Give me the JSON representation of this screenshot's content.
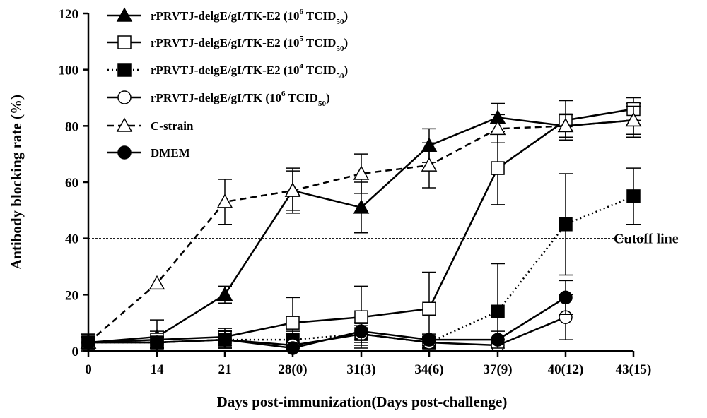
{
  "chart_data": {
    "type": "line",
    "xlabel": "Days post-immunization(Days post-challenge)",
    "ylabel": "Antibody blocking rate (%)",
    "ylim": [
      0,
      120
    ],
    "yticks": [
      "0",
      "20",
      "40",
      "60",
      "80",
      "100",
      "120"
    ],
    "categories": [
      "0",
      "14",
      "21",
      "28(0)",
      "31(3)",
      "34(6)",
      "37(9)",
      "40(12)",
      "43(15)"
    ],
    "cutoff": {
      "value": 40,
      "label": "Cutoff line"
    },
    "legend_position": "top-left",
    "series": [
      {
        "name": "rPRVTJ-delgE/gI/TK-E2 (10^6 TCID50)",
        "label_parts": [
          "rPRVTJ-delgE/gI/TK-E2 (10",
          "6",
          " TCID",
          "50",
          ")"
        ],
        "marker": "triangle-filled",
        "line": "solid",
        "values": [
          3,
          5,
          20,
          57,
          51,
          73,
          83,
          80,
          82
        ],
        "errors": [
          3,
          6,
          3,
          8,
          9,
          6,
          5,
          4,
          6
        ]
      },
      {
        "name": "rPRVTJ-delgE/gI/TK-E2 (10^5 TCID50)",
        "label_parts": [
          "rPRVTJ-delgE/gI/TK-E2 (10",
          "5",
          " TCID",
          "50",
          ")"
        ],
        "marker": "square-open",
        "line": "solid",
        "values": [
          3,
          4,
          5,
          10,
          12,
          15,
          65,
          82,
          86
        ],
        "errors": [
          2,
          3,
          3,
          9,
          11,
          13,
          13,
          7,
          4
        ]
      },
      {
        "name": "rPRVTJ-delgE/gI/TK-E2 (10^4 TCID50)",
        "label_parts": [
          "rPRVTJ-delgE/gI/TK-E2 (10",
          "4",
          " TCID",
          "50",
          ")"
        ],
        "marker": "square-filled",
        "line": "dotted",
        "values": [
          3,
          3,
          4,
          4,
          6,
          3,
          14,
          45,
          55
        ],
        "errors": [
          2,
          2,
          3,
          3,
          4,
          2,
          17,
          18,
          10
        ]
      },
      {
        "name": "rPRVTJ-delgE/gI/TK (10^6 TCID50)",
        "label_parts": [
          "rPRVTJ-delgE/gI/TK (10",
          "6",
          " TCID",
          "50",
          ")"
        ],
        "marker": "circle-open",
        "line": "solid",
        "values": [
          3,
          3,
          4,
          2,
          6,
          3,
          2,
          12,
          null
        ],
        "errors": [
          2,
          2,
          3,
          2,
          3,
          2,
          2,
          8,
          0
        ]
      },
      {
        "name": "C-strain",
        "label_parts": [
          "C-strain"
        ],
        "marker": "triangle-open",
        "line": "dashed",
        "values": [
          3,
          24,
          53,
          57,
          63,
          66,
          79,
          80,
          82
        ],
        "errors": [
          3,
          0,
          8,
          7,
          7,
          8,
          5,
          4,
          5
        ]
      },
      {
        "name": "DMEM",
        "label_parts": [
          "DMEM"
        ],
        "marker": "circle-filled",
        "line": "solid",
        "values": [
          3,
          3,
          4,
          1,
          7,
          4,
          4,
          19,
          null
        ],
        "errors": [
          2,
          2,
          3,
          2,
          3,
          2,
          3,
          6,
          0
        ]
      }
    ]
  }
}
